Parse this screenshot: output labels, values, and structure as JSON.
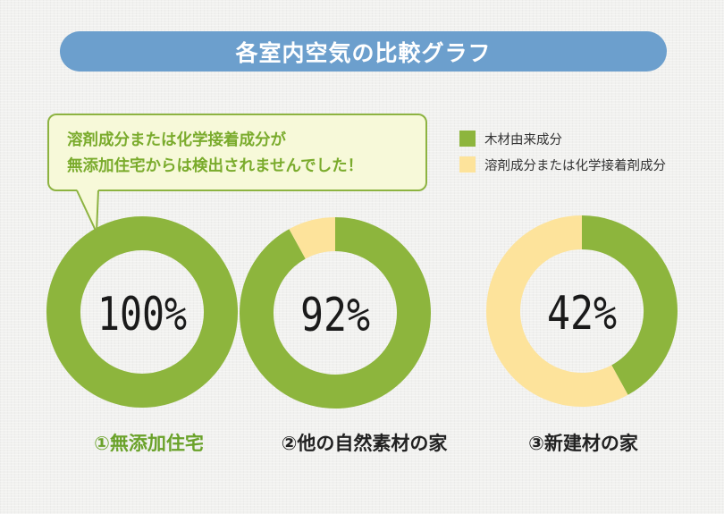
{
  "title": "各室内空気の比較グラフ",
  "callout": {
    "line1": "溶剤成分または化学接着成分が",
    "line2": "無添加住宅からは検出されませんでした！"
  },
  "legend": [
    {
      "label": "木材由来成分",
      "color": "#8db53d"
    },
    {
      "label": "溶剤成分または化学接着剤成分",
      "color": "#fde39b"
    }
  ],
  "chart_data": {
    "type": "pie",
    "title": "各室内空気の比較グラフ",
    "series_names": [
      "木材由来成分",
      "溶剤成分または化学接着剤成分"
    ],
    "colors": {
      "wood": "#8db53d",
      "chemical": "#fde39b"
    },
    "charts": [
      {
        "category": "①無添加住宅",
        "label": "100%",
        "values": [
          100,
          0
        ],
        "label_color": "#6aa22a"
      },
      {
        "category": "②他の自然素材の家",
        "label": "92%",
        "values": [
          92,
          8
        ],
        "label_color": "#222222"
      },
      {
        "category": "③新建材の家",
        "label": "42%",
        "values": [
          42,
          58
        ],
        "label_color": "#222222"
      }
    ]
  }
}
